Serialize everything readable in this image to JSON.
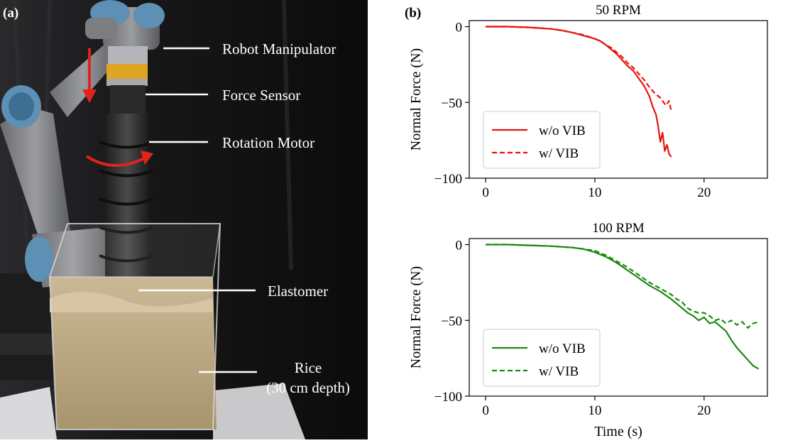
{
  "figure": {
    "panel_a_label": "(a)",
    "panel_b_label": "(b)"
  },
  "photo": {
    "labels": {
      "robot_manipulator": "Robot Manipulator",
      "force_sensor": "Force Sensor",
      "rotation_motor": "Rotation Motor",
      "elastomer": "Elastomer",
      "rice_line1": "Rice",
      "rice_line2": "(30 cm depth)"
    },
    "colors": {
      "background": "#121212",
      "arrow": "#e0231b",
      "label_text": "#ffffff"
    }
  },
  "chart_data": [
    {
      "type": "line",
      "title": "50 RPM",
      "xlabel": "",
      "ylabel": "Normal Force (N)",
      "xlim": [
        -1.5,
        25.8
      ],
      "ylim": [
        -100,
        4
      ],
      "xticks": [
        0,
        10,
        20
      ],
      "yticks": [
        0,
        -50,
        -100
      ],
      "ytick_labels": [
        "0",
        "−50",
        "−100"
      ],
      "legend_position": "lower-left",
      "color": "#e8120c",
      "series": [
        {
          "name": "w/o VIB",
          "style": "solid",
          "x": [
            0,
            2,
            4,
            6,
            7,
            8,
            9,
            10,
            10.5,
            11,
            11.5,
            12,
            12.5,
            13,
            13.5,
            14,
            14.5,
            15,
            15.3,
            15.6,
            15.8,
            16,
            16.2,
            16.4,
            16.6,
            16.8,
            17
          ],
          "y": [
            0,
            0,
            -0.5,
            -1.5,
            -2.5,
            -4,
            -6,
            -8,
            -9.5,
            -12,
            -15,
            -18,
            -22,
            -26,
            -29,
            -34,
            -39,
            -46,
            -53,
            -58,
            -66,
            -76,
            -70,
            -82,
            -78,
            -84,
            -86
          ]
        },
        {
          "name": "w/ VIB",
          "style": "dashed",
          "x": [
            0,
            2,
            4,
            6,
            7,
            8,
            9,
            10,
            10.5,
            11,
            11.5,
            12,
            12.5,
            13,
            13.5,
            14,
            14.5,
            15,
            15.5,
            16,
            16.5,
            16.8,
            17
          ],
          "y": [
            0,
            0,
            -0.5,
            -1.5,
            -2.5,
            -4,
            -5.5,
            -8,
            -9.5,
            -12,
            -14,
            -17,
            -20,
            -24,
            -27,
            -31,
            -35,
            -40,
            -44,
            -47,
            -52,
            -49,
            -56
          ]
        }
      ]
    },
    {
      "type": "line",
      "title": "100 RPM",
      "xlabel": "Time (s)",
      "ylabel": "Normal Force (N)",
      "xlim": [
        -1.5,
        25.8
      ],
      "ylim": [
        -100,
        4
      ],
      "xticks": [
        0,
        10,
        20
      ],
      "yticks": [
        0,
        -50,
        -100
      ],
      "ytick_labels": [
        "0",
        "−50",
        "−100"
      ],
      "legend_position": "lower-left",
      "color": "#1a8a12",
      "series": [
        {
          "name": "w/o VIB",
          "style": "solid",
          "x": [
            0,
            2,
            4,
            6,
            8,
            9,
            10,
            11,
            12,
            13,
            14,
            15,
            16,
            17,
            17.5,
            18,
            18.5,
            19,
            19.5,
            20,
            20.5,
            21,
            21.5,
            22,
            22.5,
            23,
            23.5,
            24,
            24.5,
            25
          ],
          "y": [
            0,
            0,
            -0.5,
            -1,
            -2,
            -3,
            -5,
            -8,
            -12,
            -17,
            -22,
            -27,
            -31,
            -36,
            -39,
            -42,
            -45,
            -47,
            -50,
            -48,
            -52,
            -51,
            -54,
            -57,
            -63,
            -68,
            -72,
            -76,
            -80,
            -82
          ]
        },
        {
          "name": "w/ VIB",
          "style": "dashed",
          "x": [
            0,
            2,
            4,
            6,
            8,
            9,
            10,
            11,
            12,
            13,
            14,
            15,
            16,
            17,
            17.5,
            18,
            18.5,
            19,
            19.5,
            20,
            20.5,
            21,
            21.5,
            22,
            22.5,
            23,
            23.5,
            24,
            24.5,
            25
          ],
          "y": [
            0,
            0,
            -0.5,
            -1,
            -2,
            -3,
            -4,
            -7,
            -11,
            -15,
            -20,
            -25,
            -29,
            -33,
            -36,
            -38,
            -42,
            -44,
            -45,
            -45,
            -47,
            -50,
            -49,
            -52,
            -50,
            -53,
            -51,
            -55,
            -52,
            -51
          ]
        }
      ]
    }
  ]
}
